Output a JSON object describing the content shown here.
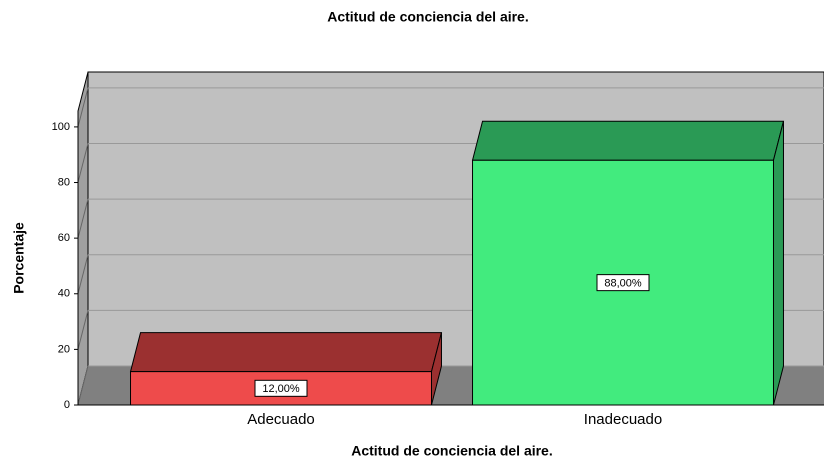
{
  "chart_data": {
    "type": "bar",
    "title": "Actitud de conciencia del aire.",
    "x_label": "Actitud de conciencia del aire.",
    "y_label": "Porcentaje",
    "categories": [
      "Adecuado",
      "Inadecuado"
    ],
    "values": [
      12,
      88
    ],
    "value_labels": [
      "12,00%",
      "88,00%"
    ],
    "colors": [
      "#ee4b4b",
      "#42eb7e"
    ],
    "top_colors": [
      "#9b3030",
      "#2a9a55"
    ],
    "ylim": [
      0,
      105
    ],
    "yticks": [
      0,
      20,
      40,
      60,
      80,
      100
    ],
    "grid": true
  }
}
